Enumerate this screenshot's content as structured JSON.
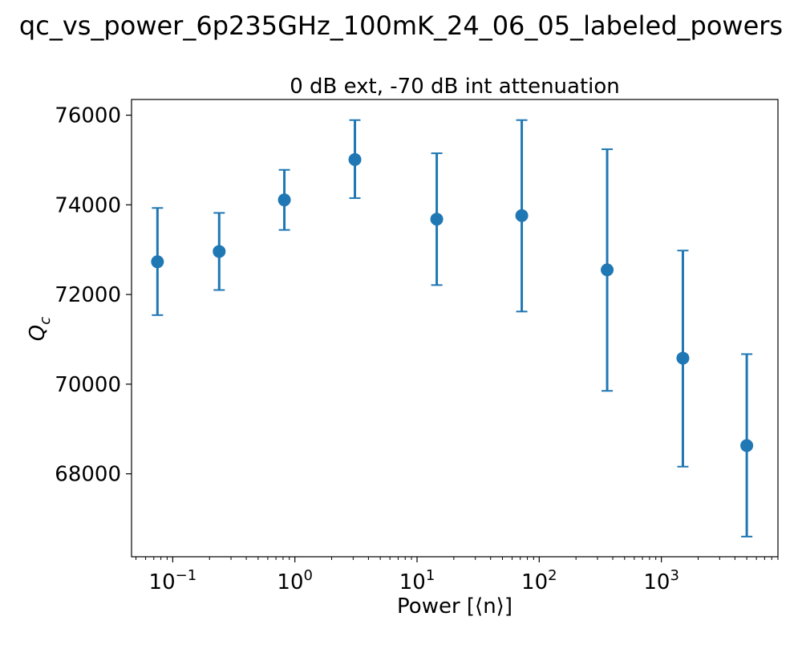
{
  "chart_data": {
    "type": "scatter",
    "title": "qc_vs_power_6p235GHz_100mK_24_06_05_labeled_powers",
    "subtitle": "0 dB ext, -70 dB int attenuation",
    "xlabel": "Power [⟨n⟩]",
    "ylabel": "Q",
    "ylabel_sub": "c",
    "xscale": "log",
    "xlim": [
      0.046,
      9000
    ],
    "ylim": [
      66150,
      76350
    ],
    "grid": false,
    "marker_color": "#1f77b4",
    "x_ticks": [
      {
        "base": "10",
        "exp": "−1",
        "value": 0.1
      },
      {
        "base": "10",
        "exp": "0",
        "value": 1
      },
      {
        "base": "10",
        "exp": "1",
        "value": 10
      },
      {
        "base": "10",
        "exp": "2",
        "value": 100
      },
      {
        "base": "10",
        "exp": "3",
        "value": 1000
      }
    ],
    "y_ticks": [
      "68000",
      "70000",
      "72000",
      "74000",
      "76000"
    ],
    "series": [
      {
        "points": [
          {
            "x": 0.075,
            "y": 72730,
            "err_low": 71540,
            "err_high": 73930
          },
          {
            "x": 0.24,
            "y": 72960,
            "err_low": 72100,
            "err_high": 73820
          },
          {
            "x": 0.82,
            "y": 74110,
            "err_low": 73440,
            "err_high": 74780
          },
          {
            "x": 3.1,
            "y": 75010,
            "err_low": 74150,
            "err_high": 75890
          },
          {
            "x": 14.5,
            "y": 73680,
            "err_low": 72210,
            "err_high": 75150
          },
          {
            "x": 72,
            "y": 73760,
            "err_low": 71620,
            "err_high": 75890
          },
          {
            "x": 360,
            "y": 72550,
            "err_low": 69850,
            "err_high": 75240
          },
          {
            "x": 1500,
            "y": 70580,
            "err_low": 68160,
            "err_high": 72980
          },
          {
            "x": 5000,
            "y": 68630,
            "err_low": 66600,
            "err_high": 70670
          }
        ]
      }
    ]
  }
}
